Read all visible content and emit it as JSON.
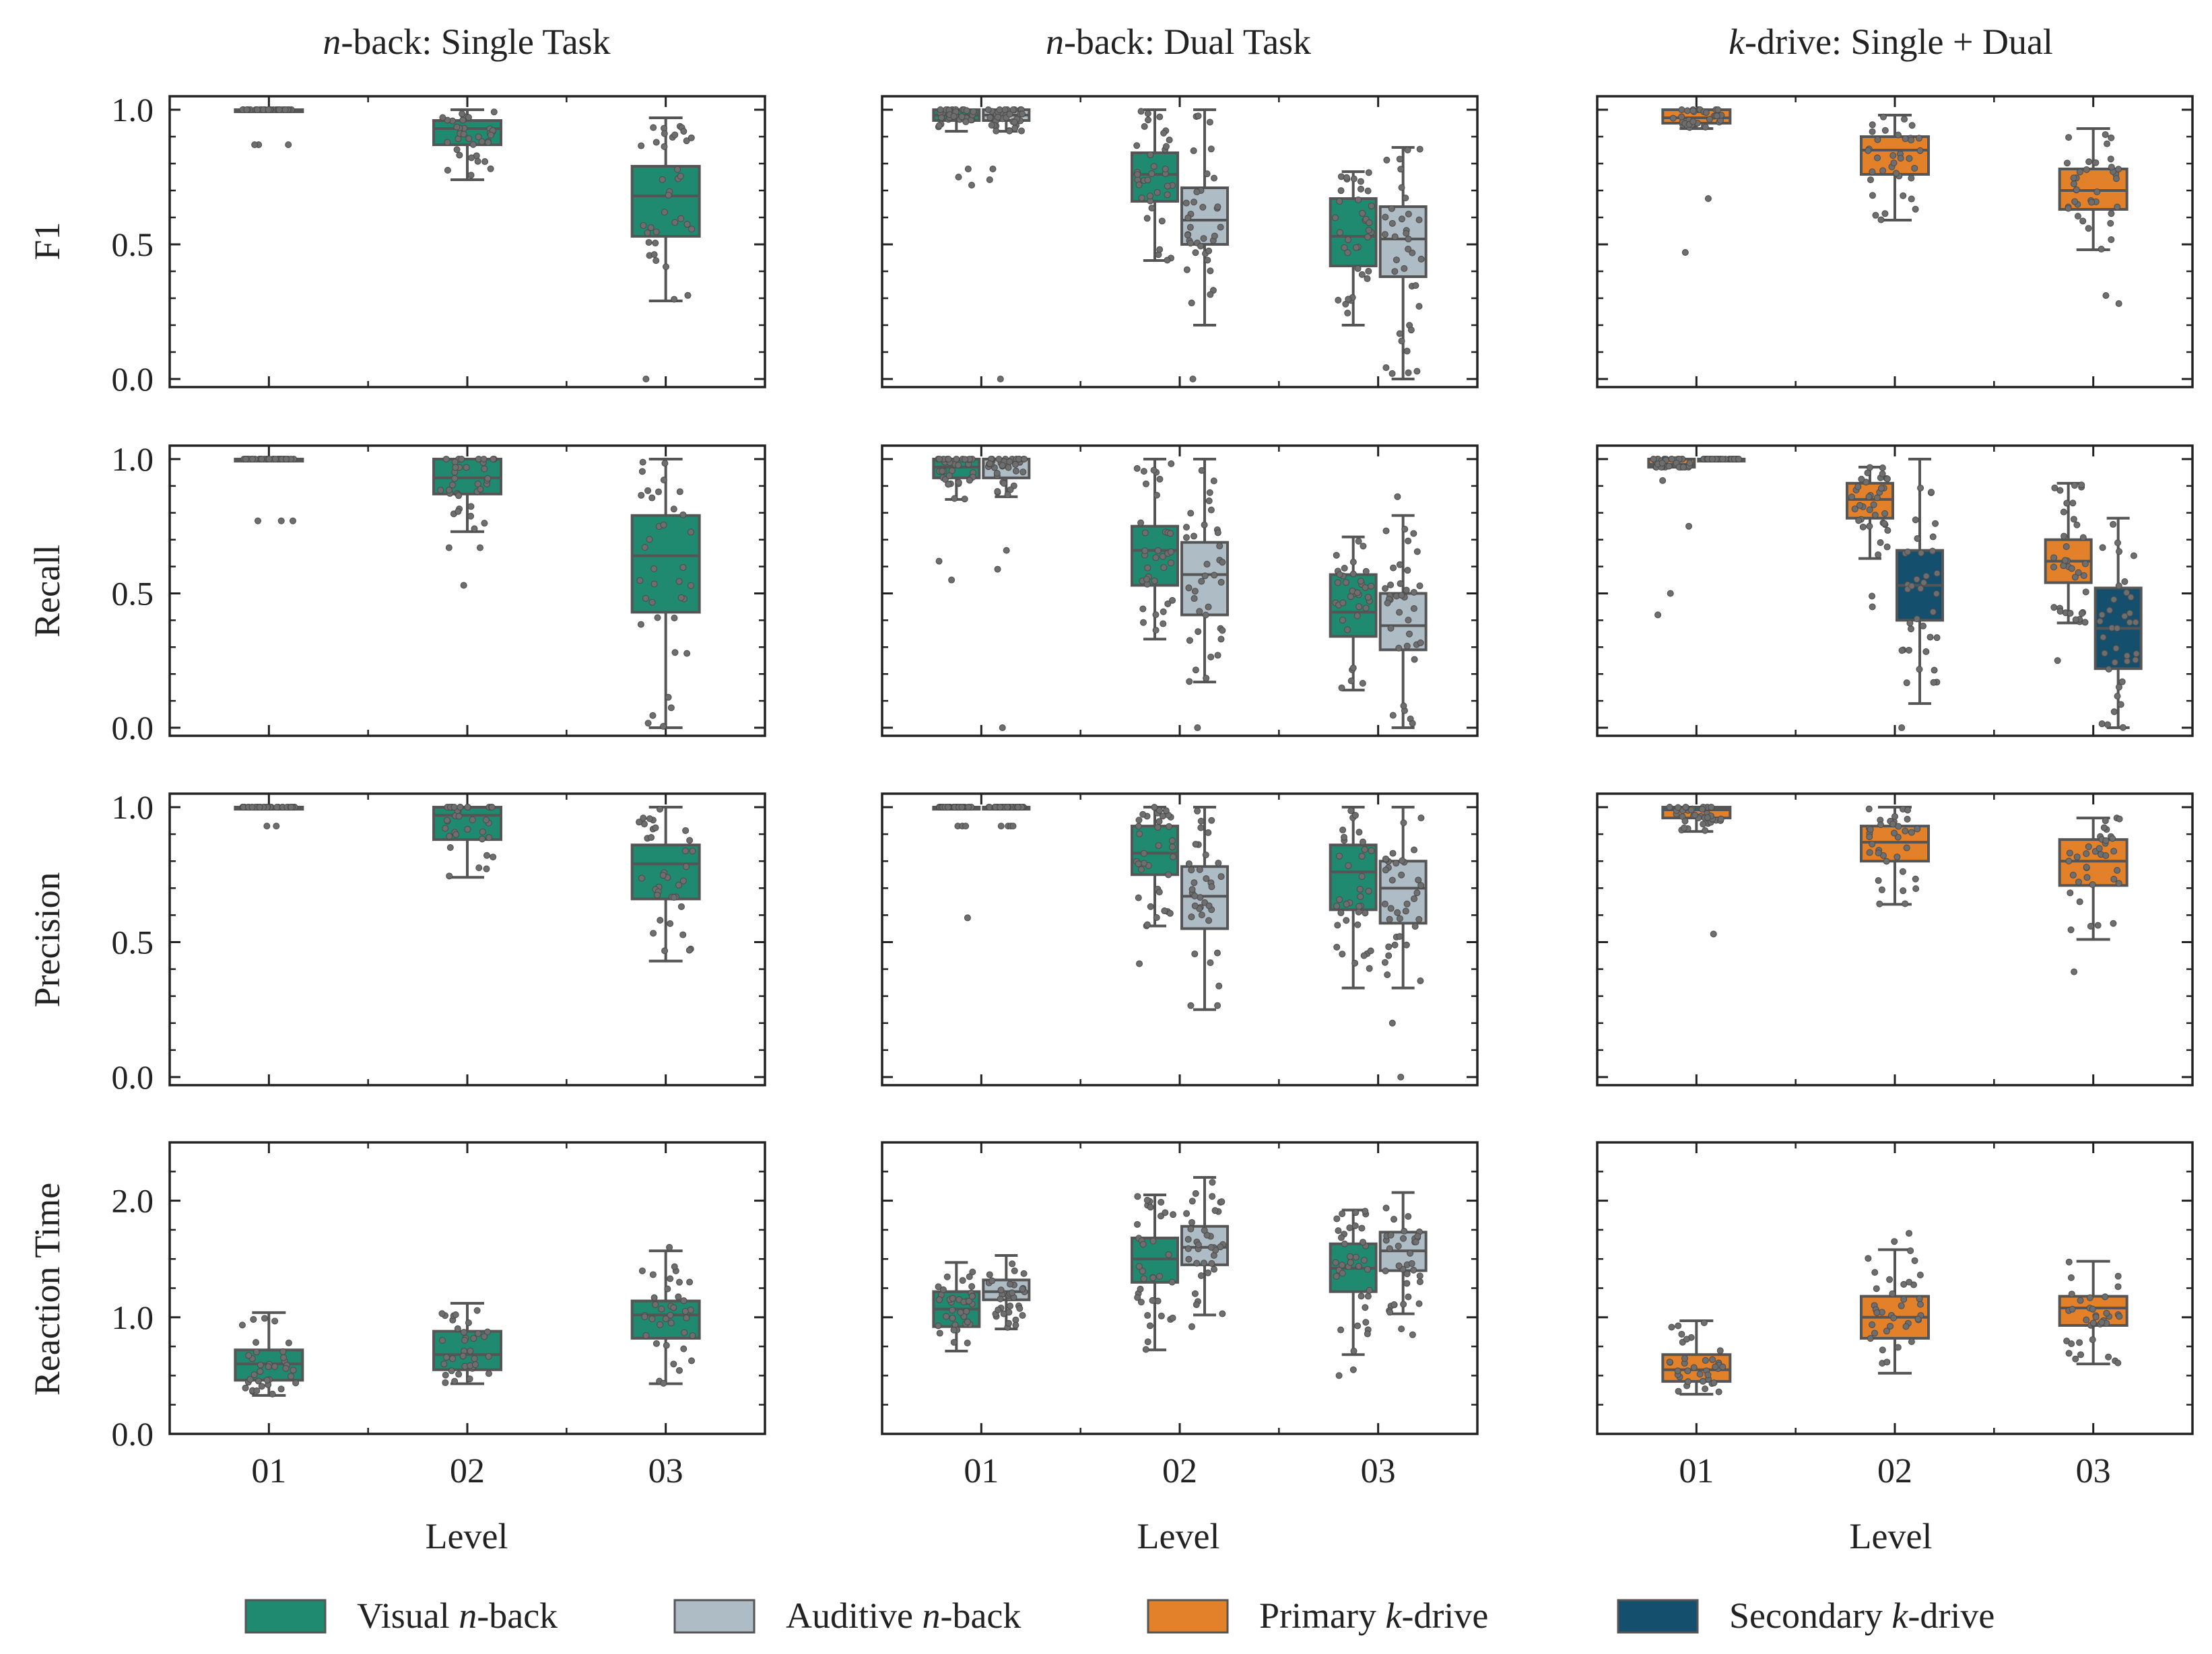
{
  "figure": {
    "columns": [
      {
        "title_italic": "n",
        "title_rest": "-back: Single Task"
      },
      {
        "title_italic": "n",
        "title_rest": "-back: Dual Task"
      },
      {
        "title_italic": "k",
        "title_rest": "-drive: Single + Dual"
      }
    ],
    "rows": [
      "F1",
      "Recall",
      "Precision",
      "Reaction Time"
    ],
    "xlabel": "Level",
    "levels": [
      "01",
      "02",
      "03"
    ],
    "yticks_score": [
      "0.0",
      "0.5",
      "1.0"
    ],
    "yticks_rt": [
      "0.0",
      "1.0",
      "2.0"
    ]
  },
  "legend": [
    {
      "key": "visual",
      "pre": "Visual ",
      "italic": "n",
      "post": "-back",
      "color": "#1f8a70"
    },
    {
      "key": "auditive",
      "pre": "Auditive ",
      "italic": "n",
      "post": "-back",
      "color": "#aebcc6"
    },
    {
      "key": "primary",
      "pre": "Primary ",
      "italic": "k",
      "post": "-drive",
      "color": "#e3812b"
    },
    {
      "key": "secondary",
      "pre": "Secondary ",
      "italic": "k",
      "post": "-drive",
      "color": "#14506e"
    }
  ],
  "chart_data": [
    {
      "type": "box",
      "title": "n-back: Single Task",
      "ylabel": "F1",
      "xlabel": "",
      "categories": [
        "01",
        "02",
        "03"
      ],
      "ylim": [
        -0.03,
        1.05
      ],
      "series": [
        {
          "name": "Visual n-back",
          "color": "#1f8a70",
          "stats": [
            [
              1.0,
              1.0,
              1.0,
              1.0,
              1.0
            ],
            [
              0.74,
              0.87,
              0.93,
              0.96,
              1.0
            ],
            [
              0.29,
              0.53,
              0.68,
              0.79,
              0.97
            ]
          ],
          "outliers": [
            [
              0.87,
              0.87,
              0.87
            ],
            [],
            [
              0.0
            ]
          ]
        }
      ]
    },
    {
      "type": "box",
      "title": "n-back: Dual Task",
      "ylabel": "F1",
      "xlabel": "",
      "categories": [
        "01",
        "02",
        "03"
      ],
      "ylim": [
        -0.03,
        1.05
      ],
      "series": [
        {
          "name": "Visual n-back",
          "color": "#1f8a70",
          "stats": [
            [
              0.92,
              0.96,
              0.98,
              1.0,
              1.0
            ],
            [
              0.44,
              0.66,
              0.76,
              0.84,
              1.0
            ],
            [
              0.2,
              0.42,
              0.53,
              0.67,
              0.77
            ]
          ],
          "outliers": [
            [
              0.78,
              0.75,
              0.72
            ],
            [],
            []
          ]
        },
        {
          "name": "Auditive n-back",
          "color": "#aebcc6",
          "stats": [
            [
              0.92,
              0.96,
              0.98,
              1.0,
              1.0
            ],
            [
              0.2,
              0.5,
              0.59,
              0.71,
              1.0
            ],
            [
              0.0,
              0.38,
              0.52,
              0.64,
              0.86
            ]
          ],
          "outliers": [
            [
              0.78,
              0.74,
              0.0
            ],
            [
              0.0
            ],
            []
          ]
        }
      ]
    },
    {
      "type": "box",
      "title": "k-drive: Single + Dual",
      "ylabel": "F1",
      "xlabel": "",
      "categories": [
        "01",
        "02",
        "03"
      ],
      "ylim": [
        -0.03,
        1.05
      ],
      "series": [
        {
          "name": "Primary k-drive",
          "color": "#e3812b",
          "stats": [
            [
              0.93,
              0.95,
              0.97,
              1.0,
              1.0
            ],
            [
              0.59,
              0.76,
              0.85,
              0.9,
              0.98
            ],
            [
              0.48,
              0.63,
              0.7,
              0.78,
              0.93
            ]
          ],
          "outliers": [
            [
              0.67,
              0.47
            ],
            [],
            [
              0.31,
              0.28
            ]
          ]
        }
      ]
    },
    {
      "type": "box",
      "title": "",
      "ylabel": "Recall",
      "xlabel": "",
      "categories": [
        "01",
        "02",
        "03"
      ],
      "ylim": [
        -0.03,
        1.05
      ],
      "series": [
        {
          "name": "Visual n-back",
          "color": "#1f8a70",
          "stats": [
            [
              1.0,
              1.0,
              1.0,
              1.0,
              1.0
            ],
            [
              0.73,
              0.87,
              0.93,
              1.0,
              1.0
            ],
            [
              0.0,
              0.43,
              0.64,
              0.79,
              1.0
            ]
          ],
          "outliers": [
            [
              0.77,
              0.77,
              0.77
            ],
            [
              0.67,
              0.67,
              0.53
            ],
            []
          ]
        }
      ]
    },
    {
      "type": "box",
      "title": "",
      "ylabel": "Recall",
      "xlabel": "",
      "categories": [
        "01",
        "02",
        "03"
      ],
      "ylim": [
        -0.03,
        1.05
      ],
      "series": [
        {
          "name": "Visual n-back",
          "color": "#1f8a70",
          "stats": [
            [
              0.85,
              0.93,
              0.97,
              1.0,
              1.0
            ],
            [
              0.33,
              0.53,
              0.66,
              0.75,
              1.0
            ],
            [
              0.14,
              0.34,
              0.43,
              0.57,
              0.71
            ]
          ],
          "outliers": [
            [
              0.62,
              0.55
            ],
            [],
            []
          ]
        },
        {
          "name": "Auditive n-back",
          "color": "#aebcc6",
          "stats": [
            [
              0.86,
              0.93,
              1.0,
              1.0,
              1.0
            ],
            [
              0.17,
              0.42,
              0.57,
              0.69,
              1.0
            ],
            [
              0.0,
              0.29,
              0.38,
              0.5,
              0.79
            ]
          ],
          "outliers": [
            [
              0.66,
              0.59,
              0.0
            ],
            [
              0.0
            ],
            [
              0.86
            ]
          ]
        }
      ]
    },
    {
      "type": "box",
      "title": "",
      "ylabel": "Recall",
      "xlabel": "",
      "categories": [
        "01",
        "02",
        "03"
      ],
      "ylim": [
        -0.03,
        1.05
      ],
      "series": [
        {
          "name": "Primary k-drive",
          "color": "#e3812b",
          "stats": [
            [
              0.97,
              0.97,
              0.98,
              1.0,
              1.0
            ],
            [
              0.63,
              0.78,
              0.85,
              0.91,
              0.97
            ],
            [
              0.39,
              0.54,
              0.62,
              0.7,
              0.91
            ]
          ],
          "outliers": [
            [
              0.92,
              0.75,
              0.5,
              0.42
            ],
            [
              0.45,
              0.49
            ],
            [
              0.25
            ]
          ]
        },
        {
          "name": "Secondary k-drive",
          "color": "#14506e",
          "stats": [
            [
              1.0,
              1.0,
              1.0,
              1.0,
              1.0
            ],
            [
              0.09,
              0.4,
              0.53,
              0.66,
              1.0
            ],
            [
              0.0,
              0.22,
              0.37,
              0.52,
              0.78
            ]
          ],
          "outliers": [
            [],
            [
              0.0
            ],
            []
          ]
        }
      ]
    },
    {
      "type": "box",
      "title": "",
      "ylabel": "Precision",
      "xlabel": "",
      "categories": [
        "01",
        "02",
        "03"
      ],
      "ylim": [
        -0.03,
        1.05
      ],
      "series": [
        {
          "name": "Visual n-back",
          "color": "#1f8a70",
          "stats": [
            [
              1.0,
              1.0,
              1.0,
              1.0,
              1.0
            ],
            [
              0.74,
              0.88,
              0.97,
              1.0,
              1.0
            ],
            [
              0.43,
              0.66,
              0.79,
              0.86,
              1.0
            ]
          ],
          "outliers": [
            [
              0.93,
              0.93
            ],
            [],
            []
          ]
        }
      ]
    },
    {
      "type": "box",
      "title": "",
      "ylabel": "Precision",
      "xlabel": "",
      "categories": [
        "01",
        "02",
        "03"
      ],
      "ylim": [
        -0.03,
        1.05
      ],
      "series": [
        {
          "name": "Visual n-back",
          "color": "#1f8a70",
          "stats": [
            [
              1.0,
              1.0,
              1.0,
              1.0,
              1.0
            ],
            [
              0.56,
              0.75,
              0.83,
              0.93,
              1.0
            ],
            [
              0.33,
              0.62,
              0.76,
              0.86,
              1.0
            ]
          ],
          "outliers": [
            [
              0.93,
              0.93,
              0.93,
              0.59
            ],
            [
              0.42
            ],
            []
          ]
        },
        {
          "name": "Auditive n-back",
          "color": "#aebcc6",
          "stats": [
            [
              1.0,
              1.0,
              1.0,
              1.0,
              1.0
            ],
            [
              0.25,
              0.55,
              0.67,
              0.78,
              1.0
            ],
            [
              0.33,
              0.57,
              0.7,
              0.8,
              1.0
            ]
          ],
          "outliers": [
            [
              0.93,
              0.93,
              0.93,
              0.93
            ],
            [],
            [
              0.2,
              0.0
            ]
          ]
        }
      ]
    },
    {
      "type": "box",
      "title": "",
      "ylabel": "Precision",
      "xlabel": "",
      "categories": [
        "01",
        "02",
        "03"
      ],
      "ylim": [
        -0.03,
        1.05
      ],
      "series": [
        {
          "name": "Primary k-drive",
          "color": "#e3812b",
          "stats": [
            [
              0.91,
              0.96,
              0.99,
              1.0,
              1.0
            ],
            [
              0.64,
              0.8,
              0.87,
              0.93,
              1.0
            ],
            [
              0.51,
              0.71,
              0.8,
              0.88,
              0.96
            ]
          ],
          "outliers": [
            [
              0.53
            ],
            [],
            [
              0.39
            ]
          ]
        }
      ]
    },
    {
      "type": "box",
      "title": "",
      "ylabel": "Reaction Time",
      "xlabel": "Level",
      "categories": [
        "01",
        "02",
        "03"
      ],
      "ylim": [
        0,
        2.5
      ],
      "series": [
        {
          "name": "Visual n-back",
          "color": "#1f8a70",
          "stats": [
            [
              0.33,
              0.46,
              0.6,
              0.72,
              1.04
            ],
            [
              0.43,
              0.55,
              0.68,
              0.88,
              1.12
            ],
            [
              0.43,
              0.82,
              1.02,
              1.14,
              1.57
            ]
          ],
          "outliers": [
            [],
            [],
            [
              1.6
            ]
          ]
        }
      ]
    },
    {
      "type": "box",
      "title": "",
      "ylabel": "Reaction Time",
      "xlabel": "Level",
      "categories": [
        "01",
        "02",
        "03"
      ],
      "ylim": [
        0,
        2.5
      ],
      "series": [
        {
          "name": "Visual n-back",
          "color": "#1f8a70",
          "stats": [
            [
              0.71,
              0.92,
              1.07,
              1.22,
              1.47
            ],
            [
              0.72,
              1.3,
              1.5,
              1.68,
              2.05
            ],
            [
              0.68,
              1.22,
              1.42,
              1.63,
              1.92
            ]
          ],
          "outliers": [
            [],
            [],
            [
              0.55,
              0.5
            ]
          ]
        },
        {
          "name": "Auditive n-back",
          "color": "#aebcc6",
          "stats": [
            [
              0.9,
              1.15,
              1.22,
              1.32,
              1.53
            ],
            [
              1.02,
              1.45,
              1.6,
              1.78,
              2.2
            ],
            [
              1.03,
              1.4,
              1.57,
              1.73,
              2.07
            ]
          ],
          "outliers": [
            [],
            [
              0.92
            ],
            [
              0.9,
              0.85
            ]
          ]
        }
      ]
    },
    {
      "type": "box",
      "title": "",
      "ylabel": "Reaction Time",
      "xlabel": "Level",
      "categories": [
        "01",
        "02",
        "03"
      ],
      "ylim": [
        0,
        2.5
      ],
      "series": [
        {
          "name": "Primary k-drive",
          "color": "#e3812b",
          "stats": [
            [
              0.34,
              0.45,
              0.55,
              0.68,
              0.97
            ],
            [
              0.52,
              0.82,
              1.0,
              1.18,
              1.58
            ],
            [
              0.6,
              0.93,
              1.08,
              1.18,
              1.48
            ]
          ],
          "outliers": [
            [],
            [
              1.72,
              1.65
            ],
            []
          ]
        }
      ]
    }
  ]
}
